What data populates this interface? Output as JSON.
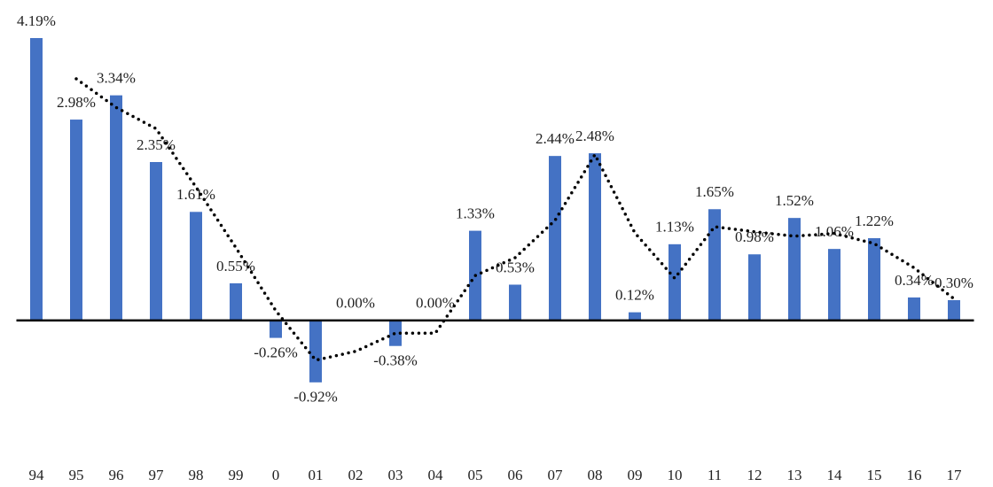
{
  "chart_data": {
    "type": "bar",
    "categories": [
      "94",
      "95",
      "96",
      "97",
      "98",
      "99",
      "0",
      "01",
      "02",
      "03",
      "04",
      "05",
      "06",
      "07",
      "08",
      "09",
      "10",
      "11",
      "12",
      "13",
      "14",
      "15",
      "16",
      "17"
    ],
    "series": [
      {
        "type": "bar",
        "color": "#4472c4",
        "values": [
          4.19,
          2.98,
          3.34,
          2.35,
          1.61,
          0.55,
          -0.26,
          -0.92,
          0.0,
          -0.38,
          0.0,
          1.33,
          0.53,
          2.44,
          2.48,
          0.12,
          1.13,
          1.65,
          0.98,
          1.52,
          1.06,
          1.22,
          0.34,
          0.3
        ],
        "value_labels": [
          "4.19%",
          "2.98%",
          "3.34%",
          "2.35%",
          "1.61%",
          "0.55%",
          "-0.26%",
          "-0.92%",
          "0.00%",
          "-0.38%",
          "0.00%",
          "1.33%",
          "0.53%",
          "2.44%",
          "2.48%",
          "0.12%",
          "1.13%",
          "1.65%",
          "0.98%",
          "1.52%",
          "1.06%",
          "1.22%",
          "0.34%",
          "0.30%"
        ]
      },
      {
        "type": "line",
        "color": "#000000",
        "dotted": true,
        "values": [
          null,
          3.585,
          3.16,
          2.845,
          1.98,
          1.08,
          0.145,
          -0.59,
          -0.46,
          -0.19,
          -0.19,
          0.665,
          0.93,
          1.485,
          2.46,
          1.3,
          0.625,
          1.39,
          1.315,
          1.25,
          1.29,
          1.14,
          0.78,
          0.32
        ]
      }
    ],
    "ylim": [
      -2,
      4.4
    ]
  }
}
